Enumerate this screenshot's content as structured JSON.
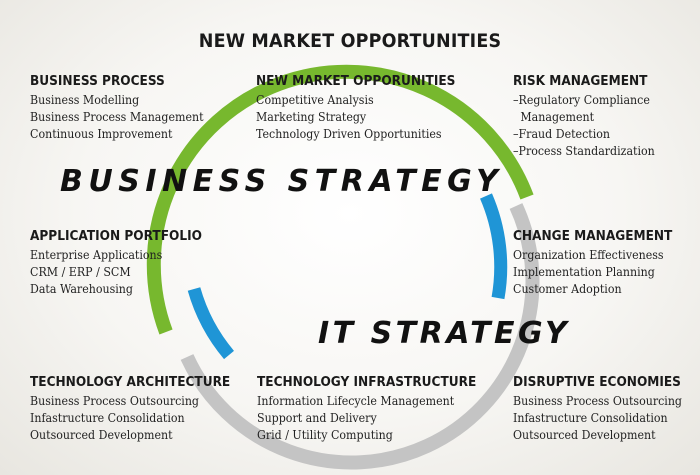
{
  "title": "NEW MARKET OPPORTUNITIES",
  "colors": {
    "green": "#77b82e",
    "blue": "#1f95d6",
    "gray": "#c4c4c4",
    "background": "#f4f3ef"
  },
  "labels": {
    "business_strategy": "BUSINESS STRATEGY",
    "it_strategy": "IT  STRATEGY"
  },
  "blocks": {
    "business_process": {
      "heading": "BUSINESS PROCESS",
      "items": [
        "Business Modelling",
        "Business Process Management",
        "Continuous Improvement"
      ]
    },
    "new_market": {
      "heading": "NEW MARKET OPPORUNITIES",
      "items": [
        "Competitive Analysis",
        "Marketing Strategy",
        "Technology Driven Opportunities"
      ]
    },
    "risk_management": {
      "heading": "RISK MANAGEMENT",
      "items": [
        "–Regulatory Compliance",
        "Management",
        "–Fraud Detection",
        "–Process Standardization"
      ]
    },
    "application_portfolio": {
      "heading": "APPLICATION PORTFOLIO",
      "items": [
        "Enterprise Applications",
        "CRM / ERP / SCM",
        "Data Warehousing"
      ]
    },
    "change_management": {
      "heading": "CHANGE MANAGEMENT",
      "items": [
        "Organization Effectiveness",
        "Implementation Planning",
        "Customer Adoption"
      ]
    },
    "technology_architecture": {
      "heading": "TECHNOLOGY ARCHITECTURE",
      "items": [
        "Business Process Outsourcing",
        "Infastructure Consolidation",
        "Outsourced Development"
      ]
    },
    "technology_infrastructure": {
      "heading": "TECHNOLOGY INFRASTRUCTURE",
      "items": [
        "Information Lifecycle Management",
        "Support and Delivery",
        "Grid / Utility Computing"
      ]
    },
    "disruptive_economies": {
      "heading": "DISRUPTIVE ECONOMIES",
      "items": [
        "Business Process Outsourcing",
        "Infastructure Consolidation",
        "Outsourced Development"
      ]
    }
  }
}
